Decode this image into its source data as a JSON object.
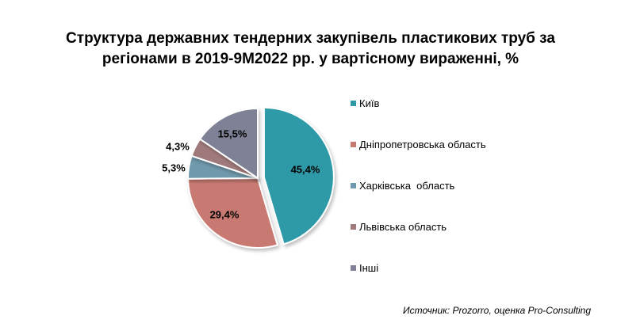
{
  "chart_data": {
    "type": "pie",
    "title": "Структура державних тендерних закупівель пластикових труб за регіонами в 2019-9М2022 рр. у вартісному вираженні, %",
    "categories": [
      "Київ",
      "Дніпропетровська область",
      "Харківська  область",
      "Львівська область",
      "Інші"
    ],
    "values": [
      45.4,
      29.4,
      5.3,
      4.3,
      15.5
    ],
    "labels": [
      "45,4%",
      "29,4%",
      "5,3%",
      "4,3%",
      "15,5%"
    ],
    "colors": [
      "#2e9aa8",
      "#c87a72",
      "#6f99ac",
      "#a07a7a",
      "#7f8296"
    ],
    "legend_position": "right",
    "source": "Источник: Prozorro, оценка Pro-Consulting"
  }
}
